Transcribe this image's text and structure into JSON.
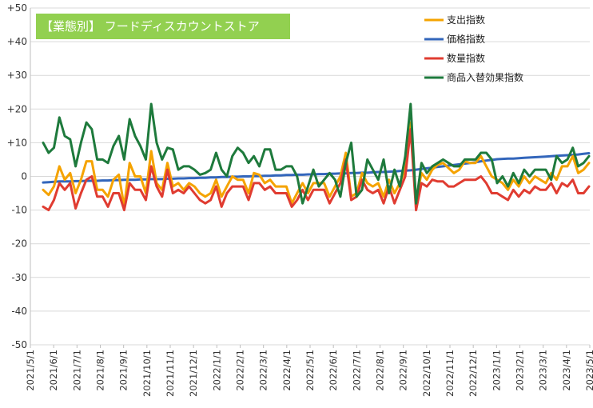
{
  "chart_data": {
    "type": "line",
    "title": "【業態別】 フードディスカウントストア",
    "xlabel": "",
    "ylabel": "",
    "ylim": [
      -50,
      50
    ],
    "yticks": [
      "+50",
      "+40",
      "+30",
      "+20",
      "+10",
      "0",
      "-10",
      "-20",
      "-30",
      "-40",
      "-50"
    ],
    "ytick_values": [
      50,
      40,
      30,
      20,
      10,
      0,
      -10,
      -20,
      -30,
      -40,
      -50
    ],
    "grid": true,
    "legend_position": "top-right",
    "x_tick_labels": [
      "2021/5/1",
      "2021/6/1",
      "2021/7/1",
      "2021/8/1",
      "2021/9/1",
      "2021/10/1",
      "2021/11/1",
      "2021/12/1",
      "2022/1/1",
      "2022/2/1",
      "2022/3/1",
      "2022/4/1",
      "2022/5/1",
      "2022/6/1",
      "2022/7/1",
      "2022/8/1",
      "2022/9/1",
      "2022/10/1",
      "2022/11/1",
      "2022/12/1",
      "2023/1/1",
      "2023/2/1",
      "2023/3/1",
      "2023/4/1",
      "2023/5/1"
    ],
    "series": [
      {
        "name": "支出指数",
        "color": "#f5a300",
        "values": [
          -4,
          -5.5,
          -3,
          3,
          -1,
          1,
          -5,
          -1,
          4.5,
          4.5,
          -4,
          -4,
          -6,
          -1,
          0.5,
          -9,
          4,
          0,
          0,
          -5,
          7.5,
          -2,
          -4,
          4,
          -3,
          -2,
          -4,
          -2,
          -3,
          -5,
          -6,
          -5,
          -1,
          -6,
          -3,
          0,
          -1,
          -1,
          -5,
          1,
          0.5,
          -2,
          -1,
          -3,
          -3,
          -3,
          -8,
          -5,
          -2,
          -5,
          -2,
          -2,
          -2,
          -6,
          -3,
          0,
          7,
          -6,
          -5,
          1,
          -2,
          -3,
          -2,
          -6,
          -1,
          -5,
          -2,
          2,
          16,
          -7,
          1,
          -1,
          2,
          3.5,
          4,
          2.5,
          1,
          2,
          4.5,
          4,
          4,
          6,
          3,
          0,
          -1,
          -2,
          -4,
          -1,
          -3,
          0,
          -2,
          0,
          -1,
          -2,
          1,
          -1,
          3,
          3,
          6,
          1,
          2,
          4
        ]
      },
      {
        "name": "価格指数",
        "color": "#3366bb",
        "values": [
          -1.8,
          -1.7,
          -1.6,
          -1.5,
          -1.5,
          -1.5,
          -1.4,
          -1.4,
          -1.3,
          -1.3,
          -1.3,
          -1.2,
          -1.2,
          -1.1,
          -1.1,
          -1.0,
          -1.0,
          -1.0,
          -0.9,
          -0.9,
          -0.8,
          -0.8,
          -0.8,
          -0.7,
          -0.7,
          -0.6,
          -0.6,
          -0.5,
          -0.5,
          -0.4,
          -0.4,
          -0.3,
          -0.3,
          -0.2,
          -0.2,
          -0.1,
          -0.1,
          0.0,
          0.0,
          0.1,
          0.1,
          0.2,
          0.2,
          0.3,
          0.3,
          0.4,
          0.4,
          0.5,
          0.5,
          0.6,
          0.6,
          0.7,
          0.7,
          0.8,
          0.8,
          0.9,
          0.9,
          1.0,
          1.0,
          1.1,
          1.1,
          1.2,
          1.3,
          1.3,
          1.4,
          1.5,
          1.6,
          1.7,
          1.8,
          2.0,
          2.2,
          2.4,
          2.6,
          2.8,
          3.0,
          3.2,
          3.4,
          3.6,
          3.8,
          4.0,
          4.2,
          4.5,
          4.7,
          4.9,
          5.1,
          5.2,
          5.3,
          5.3,
          5.4,
          5.5,
          5.6,
          5.7,
          5.8,
          5.9,
          6.0,
          6.1,
          6.2,
          6.3,
          6.4,
          6.5,
          6.7,
          6.9
        ]
      },
      {
        "name": "数量指数",
        "color": "#e03c31",
        "values": [
          -9,
          -10,
          -7,
          -2,
          -4,
          -2,
          -9.5,
          -5,
          -1,
          0,
          -6,
          -6,
          -9,
          -5,
          -5,
          -10,
          -2,
          -4,
          -4,
          -7,
          3,
          -3,
          -6,
          2,
          -5,
          -4,
          -5,
          -3,
          -5,
          -7,
          -8,
          -7,
          -3,
          -9,
          -5,
          -3,
          -3,
          -3,
          -7,
          -2,
          -2,
          -4,
          -3,
          -5,
          -5,
          -5,
          -9,
          -7,
          -4,
          -7,
          -4,
          -4,
          -4,
          -8,
          -5,
          -2,
          5,
          -7,
          -6,
          -1,
          -4,
          -5,
          -4,
          -8,
          -3,
          -8,
          -4,
          0,
          14,
          -10,
          -2,
          -3,
          -1,
          -1.5,
          -1.5,
          -3,
          -3,
          -2,
          -1,
          -1,
          -1,
          0,
          -2,
          -5,
          -5,
          -6,
          -7,
          -4,
          -6,
          -4,
          -5,
          -3,
          -4,
          -4,
          -2,
          -5,
          -2,
          -3,
          -1,
          -5,
          -5,
          -3
        ]
      },
      {
        "name": "商品入替効果指数",
        "color": "#1e7a3c",
        "values": [
          10,
          7,
          8.5,
          17.5,
          12,
          11,
          3,
          10,
          16,
          14,
          5,
          5,
          4,
          9,
          12,
          5,
          17,
          12,
          9,
          5,
          21.5,
          10,
          5,
          8.5,
          8,
          2,
          3,
          3,
          2,
          0.5,
          1,
          2,
          7,
          2,
          0,
          6,
          8.5,
          7,
          4,
          6,
          3,
          8,
          8,
          2,
          2,
          3,
          3,
          0,
          -8,
          -3,
          2,
          -3,
          -1,
          1,
          -1,
          -6,
          4,
          10,
          -6,
          -4,
          5,
          2,
          -1,
          5,
          -5,
          2,
          -3,
          6,
          21.5,
          -8,
          4,
          1,
          3,
          4,
          5,
          4,
          3,
          3,
          5,
          5,
          5,
          7,
          7,
          5,
          -2,
          0,
          -3,
          1,
          -2,
          2,
          0,
          2,
          2,
          2,
          -1,
          6,
          4,
          5,
          8.5,
          3,
          4,
          6
        ]
      }
    ]
  }
}
